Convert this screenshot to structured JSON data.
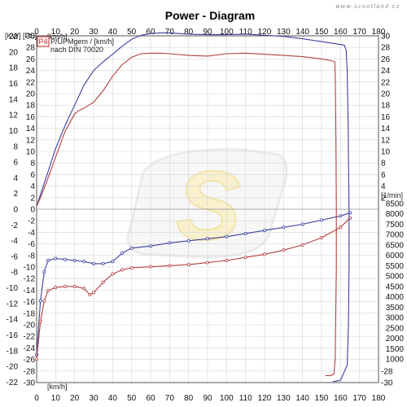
{
  "page": {
    "title": "Power - Diagram",
    "watermark": "www.scootland.cz",
    "logo_letter": "S"
  },
  "chart_data": {
    "type": "line",
    "title": "Power - Diagram",
    "xlabel": "[km/h]",
    "x_axis_unit_top": "[km/h]",
    "x_axis_unit_bottom": "[km/h]",
    "y_left_kw_label": "[KW]",
    "y_left_ps_label": "[PS]",
    "y_right_rpm_label": "[1/min]",
    "xlim": [
      0,
      180
    ],
    "x_ticks": [
      0,
      10,
      20,
      30,
      40,
      50,
      60,
      70,
      80,
      90,
      100,
      110,
      120,
      130,
      140,
      150,
      160,
      170,
      180
    ],
    "kw_ticks": [
      22,
      20,
      18,
      16,
      14,
      12,
      10,
      8,
      6,
      4,
      2,
      0,
      -2,
      -4,
      -6,
      -8,
      -10,
      -12,
      -14,
      -16,
      -18,
      -20,
      -22
    ],
    "ps_ticks": [
      30,
      28,
      26,
      24,
      22,
      20,
      18,
      16,
      14,
      12,
      10,
      8,
      6,
      4,
      2,
      0,
      -2,
      -4,
      -6,
      -8,
      -10,
      -12,
      -14,
      -16,
      -18,
      -20,
      -22,
      -24,
      -26,
      -28,
      -30
    ],
    "rpm_ticks": [
      8500,
      8000,
      7500,
      7000,
      6500,
      6000,
      5500,
      5000,
      4500,
      4000,
      3500,
      3000,
      2500,
      2000,
      1500,
      1000
    ],
    "ylim_ps": [
      -30,
      30
    ],
    "rpm_range": [
      1000,
      8500
    ],
    "grid": true,
    "legend_placement": "top-left",
    "legend": {
      "badge": "P4",
      "line1": "P/UPMgem / [km/h]",
      "line2": "nach DIN 70020"
    },
    "colors": {
      "series_blue": "#3b3f9e",
      "series_red": "#b0403f",
      "grid": "#d6d6d6",
      "badge_border": "#c33333"
    },
    "series": [
      {
        "color": "blue",
        "axis": "ps",
        "x": [
          0,
          1,
          3,
          6,
          10,
          15,
          20,
          25,
          30,
          35,
          40,
          45,
          50,
          55,
          60,
          65,
          70,
          80,
          90,
          100,
          110,
          120,
          130,
          140,
          150,
          158,
          162,
          163
        ],
        "values": [
          0.5,
          1.5,
          3.5,
          6.5,
          10.5,
          14.5,
          18,
          21.5,
          24,
          25.5,
          26.8,
          28.2,
          29.4,
          30.1,
          30.4,
          30.5,
          30.5,
          30.3,
          30.2,
          30.2,
          30.3,
          30.1,
          29.9,
          29.5,
          29.0,
          28.6,
          28.4,
          27.5
        ]
      },
      {
        "color": "red",
        "axis": "ps",
        "x": [
          0,
          2,
          5,
          10,
          15,
          20,
          22,
          25,
          30,
          35,
          40,
          45,
          50,
          55,
          60,
          65,
          70,
          80,
          90,
          100,
          110,
          120,
          130,
          140,
          150,
          155,
          157
        ],
        "values": [
          0.5,
          2,
          4.5,
          9,
          13.5,
          16.5,
          17,
          17.5,
          18.5,
          20.5,
          23,
          25,
          26.3,
          26.9,
          27,
          27,
          26.9,
          26.6,
          26.5,
          26.9,
          27,
          26.8,
          26.6,
          26.4,
          26.0,
          25.7,
          25.5
        ]
      },
      {
        "color": "blue",
        "axis": "rpm",
        "x": [
          0,
          2,
          4,
          6,
          10,
          15,
          20,
          25,
          30,
          35,
          40,
          45,
          50,
          60,
          70,
          80,
          90,
          100,
          110,
          120,
          130,
          140,
          150,
          160,
          165
        ],
        "values": [
          1200,
          3800,
          5200,
          5750,
          5850,
          5800,
          5750,
          5700,
          5600,
          5600,
          5700,
          6100,
          6350,
          6450,
          6600,
          6700,
          6800,
          6900,
          7050,
          7200,
          7350,
          7500,
          7700,
          7900,
          8050
        ]
      },
      {
        "color": "red",
        "axis": "rpm",
        "x": [
          0,
          2,
          4,
          6,
          10,
          15,
          20,
          25,
          28,
          30,
          35,
          40,
          45,
          50,
          60,
          70,
          80,
          90,
          100,
          110,
          120,
          130,
          140,
          150,
          160,
          165
        ],
        "values": [
          1000,
          2800,
          3800,
          4300,
          4450,
          4500,
          4500,
          4400,
          4100,
          4200,
          4700,
          5100,
          5300,
          5400,
          5450,
          5500,
          5550,
          5650,
          5750,
          5900,
          6050,
          6250,
          6500,
          6850,
          7350,
          7800
        ]
      },
      {
        "color": "blue",
        "axis": "ps",
        "x": [
          163,
          163.5,
          164,
          164.5,
          164.5,
          164.2,
          163.5,
          160,
          157,
          156
        ],
        "values": [
          27.5,
          24,
          15,
          0,
          -10,
          -20,
          -27,
          -29.6,
          -29.8,
          -29.8
        ]
      },
      {
        "color": "red",
        "axis": "ps",
        "x": [
          157,
          157.3,
          157.6,
          157.8,
          157.8,
          157.5,
          157.2,
          156.5,
          155,
          152
        ],
        "values": [
          25.5,
          22,
          12,
          0,
          -10,
          -18,
          -26,
          -28.5,
          -28.8,
          -28.8
        ]
      }
    ]
  }
}
